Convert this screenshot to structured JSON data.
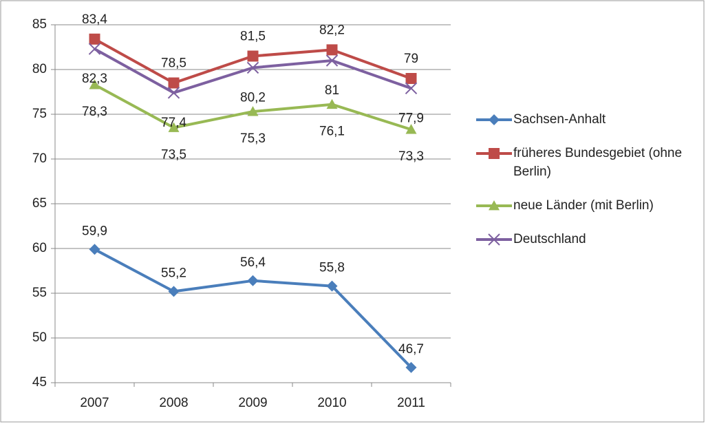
{
  "chart_data": {
    "type": "line",
    "categories": [
      "2007",
      "2008",
      "2009",
      "2010",
      "2011"
    ],
    "ylim": [
      45,
      85
    ],
    "yticks": [
      45,
      50,
      55,
      60,
      65,
      70,
      75,
      80,
      85
    ],
    "grid": true,
    "series": [
      {
        "name": "Sachsen-Anhalt",
        "color": "#4a7ebb",
        "marker": "diamond",
        "values": [
          59.9,
          55.2,
          56.4,
          55.8,
          46.7
        ],
        "value_labels": [
          "59,9",
          "55,2",
          "56,4",
          "55,8",
          "46,7"
        ]
      },
      {
        "name": "früheres Bundesgebiet (ohne Berlin)",
        "color": "#be4b48",
        "marker": "square",
        "values": [
          83.4,
          78.5,
          81.5,
          82.2,
          79
        ],
        "value_labels": [
          "83,4",
          "78,5",
          "81,5",
          "82,2",
          "79"
        ]
      },
      {
        "name": "neue Länder (mit Berlin)",
        "color": "#98b954",
        "marker": "triangle",
        "values": [
          78.3,
          73.5,
          75.3,
          76.1,
          73.3
        ],
        "value_labels": [
          "78,3",
          "73,5",
          "75,3",
          "76,1",
          "73,3"
        ]
      },
      {
        "name": "Deutschland",
        "color": "#7d60a0",
        "marker": "x",
        "values": [
          82.3,
          77.4,
          80.2,
          81,
          77.9
        ],
        "value_labels": [
          "82,3",
          "77,4",
          "80,2",
          "81",
          "77,9"
        ]
      }
    ]
  }
}
